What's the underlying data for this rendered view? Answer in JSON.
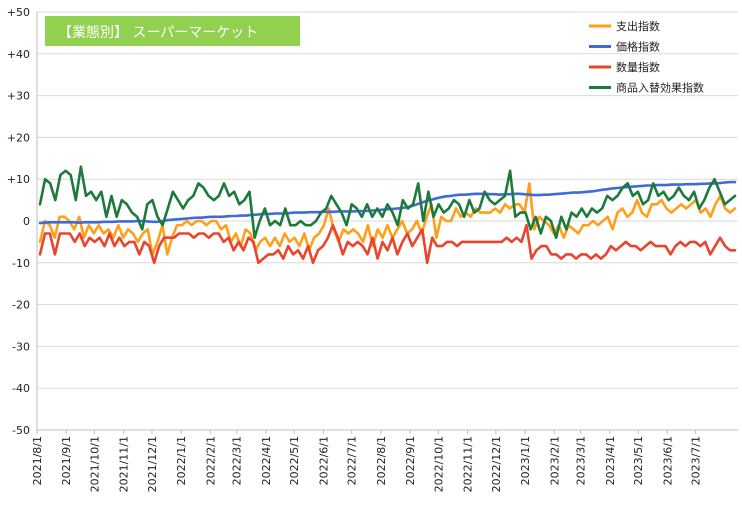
{
  "chart_data": {
    "type": "line",
    "title": "【業態別】 スーパーマーケット",
    "title_bg": "#92d050",
    "ylim": [
      -50,
      50
    ],
    "y_ticks": [
      "-50",
      "-40",
      "-30",
      "-20",
      "-10",
      "0",
      "+10",
      "+20",
      "+30",
      "+40",
      "+50"
    ],
    "x_tick_labels": [
      "2021/8/1",
      "2021/9/1",
      "2021/10/1",
      "2021/11/1",
      "2021/12/1",
      "2022/1/1",
      "2022/2/1",
      "2022/3/1",
      "2022/4/1",
      "2022/5/1",
      "2022/6/1",
      "2022/7/1",
      "2022/8/1",
      "2022/9/1",
      "2022/10/1",
      "2022/11/1",
      "2022/12/1",
      "2023/1/1",
      "2023/2/1",
      "2023/3/1",
      "2023/4/1",
      "2023/5/1",
      "2023/6/1",
      "2023/7/1"
    ],
    "x_start": "2021-08-01",
    "x_end": "2023-08-15",
    "grid": true,
    "legend_position": "top-right",
    "series": [
      {
        "name": "支出指数",
        "color": "#ff9f1a",
        "values": [
          -5,
          0,
          -1,
          -4,
          1,
          1,
          0,
          -2,
          1,
          -4,
          -1,
          -3,
          -1,
          -3,
          -2,
          -4,
          -1,
          -4,
          -2,
          -3,
          -5,
          -3,
          -2,
          -8,
          -5,
          -1,
          -8,
          -4,
          -1,
          -1,
          0,
          -1,
          0,
          0,
          -1,
          0,
          0,
          -2,
          -1,
          -5,
          -3,
          -6,
          -2,
          -3,
          -7,
          -5,
          -4,
          -6,
          -4,
          -6,
          -3,
          -5,
          -4,
          -6,
          -3,
          -7,
          -4,
          -3,
          -1,
          3,
          -2,
          -5,
          -2,
          -3,
          -2,
          -3,
          -5,
          -1,
          -6,
          -2,
          -4,
          -1,
          -4,
          -2,
          0,
          -3,
          -2,
          0,
          -3,
          1,
          4,
          -4,
          1,
          0,
          0,
          3,
          1,
          2,
          1,
          3,
          2,
          2,
          2,
          3,
          2,
          4,
          3,
          4,
          4,
          2,
          9,
          -2,
          1,
          0,
          -1,
          -3,
          -1,
          -4,
          -1,
          -2,
          -3,
          -1,
          -1,
          0,
          -1,
          0,
          1,
          -2,
          2,
          3,
          1,
          2,
          5,
          2,
          1,
          4,
          4,
          5,
          3,
          2,
          3,
          4,
          3,
          4,
          5,
          2,
          3,
          1,
          4,
          6,
          3,
          2,
          3
        ],
        "ylabels": []
      },
      {
        "name": "価格指数",
        "color": "#3f6bd9",
        "values": [
          -0.5,
          -0.4,
          -0.3,
          -0.3,
          -0.3,
          -0.3,
          -0.3,
          -0.3,
          -0.4,
          -0.3,
          -0.3,
          -0.3,
          -0.3,
          -0.2,
          -0.2,
          -0.2,
          -0.1,
          -0.1,
          -0.1,
          -0.1,
          0,
          0,
          -0.1,
          -0.2,
          -0.2,
          0,
          0.2,
          0.3,
          0.4,
          0.5,
          0.6,
          0.7,
          0.8,
          0.8,
          0.9,
          1,
          1,
          1,
          1.1,
          1.2,
          1.2,
          1.3,
          1.3,
          1.4,
          1.5,
          1.6,
          1.7,
          1.7,
          1.8,
          1.8,
          1.8,
          1.9,
          2,
          2,
          2,
          2.1,
          2.1,
          2.1,
          2.2,
          2.2,
          2.2,
          2.3,
          2.3,
          2.3,
          2.3,
          2.4,
          2.4,
          2.4,
          2.5,
          2.6,
          2.7,
          2.8,
          2.9,
          3,
          3.1,
          3.3,
          3.6,
          4,
          4.4,
          4.8,
          5.1,
          5.4,
          5.7,
          5.9,
          6,
          6.2,
          6.3,
          6.3,
          6.4,
          6.5,
          6.5,
          6.5,
          6.4,
          6.4,
          6.3,
          6.4,
          6.4,
          6.5,
          6.5,
          6.4,
          6.3,
          6.2,
          6.2,
          6.3,
          6.3,
          6.4,
          6.5,
          6.6,
          6.7,
          6.8,
          6.8,
          6.9,
          7,
          7.1,
          7.3,
          7.5,
          7.6,
          7.8,
          7.9,
          8,
          8.1,
          8.2,
          8.3,
          8.4,
          8.5,
          8.5,
          8.6,
          8.6,
          8.6,
          8.7,
          8.7,
          8.7,
          8.8,
          8.8,
          8.8,
          8.9,
          8.9,
          9,
          9,
          9.1,
          9.2,
          9.3,
          9.3
        ],
        "ylabels": []
      },
      {
        "name": "数量指数",
        "color": "#e8452c",
        "values": [
          -8,
          -3,
          -3,
          -8,
          -3,
          -3,
          -3,
          -5,
          -3,
          -6,
          -4,
          -5,
          -4,
          -6,
          -3,
          -6,
          -4,
          -6,
          -5,
          -5,
          -8,
          -5,
          -6,
          -10,
          -6,
          -4,
          -4,
          -4,
          -3,
          -3,
          -3,
          -4,
          -3,
          -3,
          -4,
          -3,
          -3,
          -5,
          -4,
          -7,
          -5,
          -7,
          -4,
          -5,
          -10,
          -9,
          -8,
          -8,
          -7,
          -9,
          -6,
          -8,
          -7,
          -9,
          -6,
          -10,
          -7,
          -6,
          -4,
          -1,
          -4,
          -8,
          -5,
          -6,
          -5,
          -6,
          -8,
          -4,
          -9,
          -5,
          -7,
          -4,
          -8,
          -5,
          -3,
          -6,
          -4,
          -2,
          -10,
          -4,
          -6,
          -6,
          -5,
          -5,
          -6,
          -5,
          -5,
          -5,
          -5,
          -5,
          -5,
          -5,
          -5,
          -5,
          -4,
          -5,
          -4,
          -5,
          -1,
          -9,
          -7,
          -6,
          -6,
          -8,
          -8,
          -9,
          -8,
          -8,
          -9,
          -8,
          -8,
          -9,
          -8,
          -9,
          -8,
          -6,
          -7,
          -6,
          -5,
          -6,
          -6,
          -7,
          -6,
          -5,
          -6,
          -6,
          -6,
          -8,
          -6,
          -5,
          -6,
          -5,
          -5,
          -6,
          -5,
          -8,
          -6,
          -4,
          -6,
          -7,
          -7
        ],
        "ylabels": []
      },
      {
        "name": "商品入替効果指数",
        "color": "#1e7a3c",
        "values": [
          4,
          10,
          9,
          5,
          11,
          12,
          11,
          5,
          13,
          6,
          7,
          5,
          7,
          1,
          6,
          1,
          5,
          4,
          2,
          1,
          -2,
          4,
          5,
          1,
          -1,
          3,
          7,
          5,
          3,
          5,
          6,
          9,
          8,
          6,
          5,
          6,
          9,
          6,
          7,
          4,
          5,
          7,
          -4,
          0,
          3,
          -1,
          0,
          -1,
          3,
          -1,
          -1,
          0,
          -1,
          -1,
          0,
          2,
          3,
          6,
          4,
          2,
          -1,
          4,
          3,
          1,
          4,
          1,
          3,
          1,
          4,
          2,
          -1,
          5,
          3,
          4,
          9,
          0,
          7,
          1,
          4,
          2,
          3,
          5,
          4,
          1,
          5,
          2,
          3,
          7,
          5,
          4,
          5,
          6,
          12,
          1,
          2,
          2,
          -2,
          1,
          -3,
          1,
          0,
          -4,
          1,
          -2,
          2,
          1,
          3,
          1,
          3,
          2,
          3,
          6,
          5,
          6,
          8,
          9,
          6,
          7,
          4,
          5,
          9,
          6,
          7,
          5,
          6,
          8,
          6,
          5,
          7,
          3,
          5,
          8,
          10,
          7,
          4,
          5,
          6
        ],
        "ylabels": []
      }
    ]
  }
}
